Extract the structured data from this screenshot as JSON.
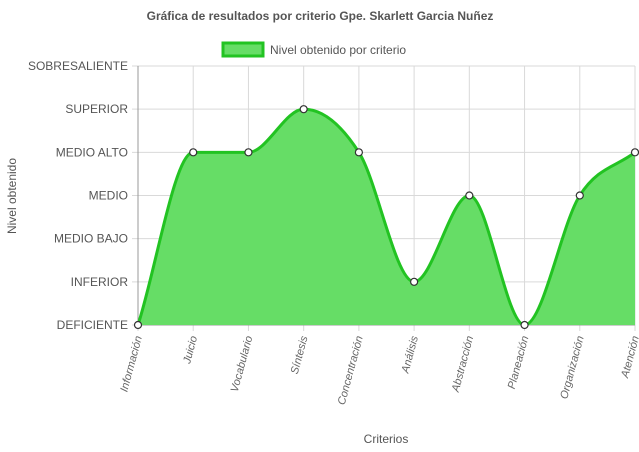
{
  "chart_data": {
    "type": "area",
    "title": "Gráfica de resultados por criterio Gpe. Skarlett Garcia Nuñez",
    "xlabel": "Criterios",
    "ylabel": "Nivel obtenido",
    "categories": [
      "Información",
      "Juicio",
      "Vocabulario",
      "Síntesis",
      "Concentración",
      "Análisis",
      "Abstracción",
      "Planeación",
      "Organización",
      "Atención"
    ],
    "y_levels": [
      "DEFICIENTE",
      "INFERIOR",
      "MEDIO BAJO",
      "MEDIO",
      "MEDIO ALTO",
      "SUPERIOR",
      "SOBRESALIENTE"
    ],
    "ylim": [
      0,
      6
    ],
    "series": [
      {
        "name": "Nivel obtenido por criterio",
        "values": [
          0,
          4,
          4,
          5,
          4,
          1,
          3,
          0,
          3,
          4
        ]
      }
    ],
    "legend": "top-center",
    "grid": true,
    "colors": {
      "fill": "#66dd66",
      "line": "#22c322",
      "point_fill": "#ffffff",
      "point_stroke": "#333333",
      "grid": "#d9d9d9"
    }
  }
}
